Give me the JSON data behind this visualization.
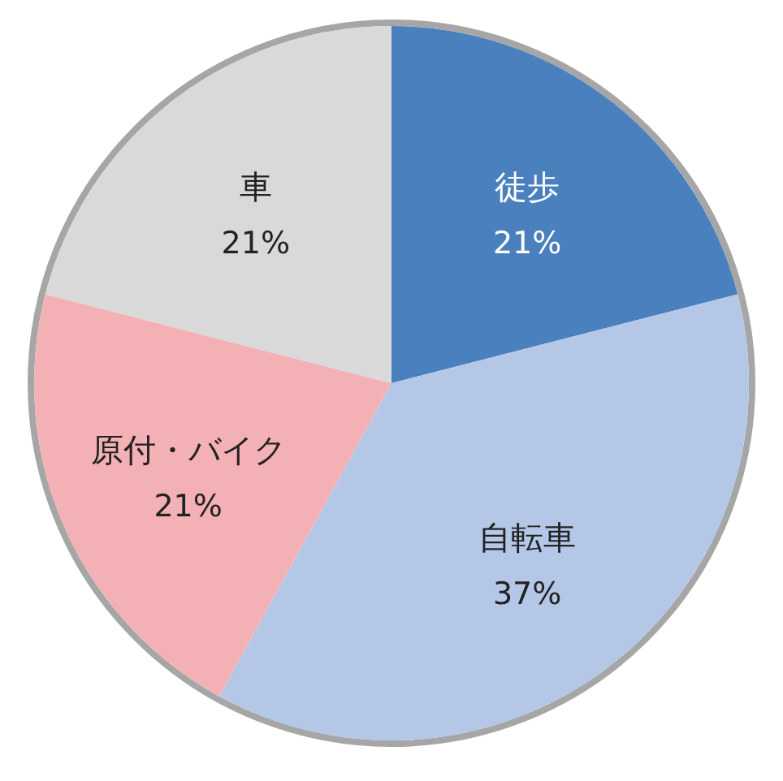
{
  "chart_data": {
    "type": "pie",
    "categories": [
      "徒歩",
      "自転車",
      "原付・バイク",
      "車"
    ],
    "values": [
      21,
      37,
      21,
      21
    ],
    "colors": [
      "#4a80be",
      "#b4c7e7",
      "#f4b1b5",
      "#d9d9d9"
    ],
    "value_labels": [
      "21%",
      "37%",
      "21%",
      "21%"
    ]
  }
}
